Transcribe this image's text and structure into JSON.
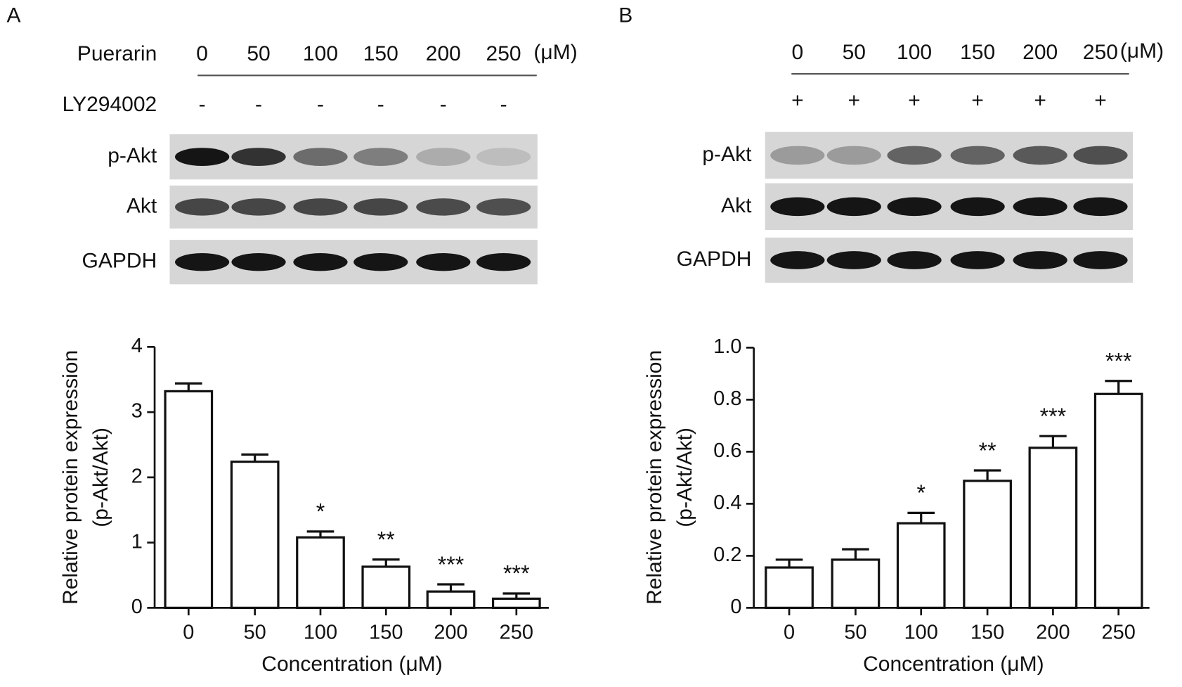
{
  "chart_data": [
    {
      "type": "bar",
      "panel_label": "A",
      "treatment_rows": [
        {
          "label": "Puerarin",
          "values": [
            "0",
            "50",
            "100",
            "150",
            "200",
            "250"
          ],
          "unit": "(μM)"
        },
        {
          "label": "LY294002",
          "values": [
            "-",
            "-",
            "-",
            "-",
            "-",
            "-"
          ]
        }
      ],
      "blot_labels": [
        "p-Akt",
        "Akt",
        "GAPDH"
      ],
      "y_label": [
        "Relative protein expression",
        "(p-Akt/Akt)"
      ],
      "x_label": "Concentration (μM)",
      "categories": [
        "0",
        "50",
        "100",
        "150",
        "200",
        "250"
      ],
      "values": [
        3.32,
        2.24,
        1.08,
        0.63,
        0.25,
        0.14
      ],
      "errors": [
        0.12,
        0.11,
        0.09,
        0.11,
        0.11,
        0.08
      ],
      "significance": [
        null,
        null,
        "*",
        "**",
        "***",
        "***"
      ],
      "color": "#ffffff",
      "ylim": [
        0,
        4
      ],
      "yticks": [
        0,
        1,
        2,
        3,
        4
      ],
      "grid": false
    },
    {
      "type": "bar",
      "panel_label": "B",
      "treatment_rows": [
        {
          "values": [
            "0",
            "50",
            "100",
            "150",
            "200",
            "250"
          ],
          "unit": "(μM)"
        },
        {
          "values": [
            "+",
            "+",
            "+",
            "+",
            "+",
            "+"
          ]
        }
      ],
      "blot_labels": [
        "p-Akt",
        "Akt",
        "GAPDH"
      ],
      "y_label": [
        "Relative protein expression",
        "(p-Akt/Akt)"
      ],
      "x_label": "Concentration (μM)",
      "categories": [
        "0",
        "50",
        "100",
        "150",
        "200",
        "250"
      ],
      "values": [
        0.155,
        0.185,
        0.325,
        0.488,
        0.615,
        0.822
      ],
      "errors": [
        0.03,
        0.04,
        0.04,
        0.04,
        0.045,
        0.05
      ],
      "significance": [
        null,
        null,
        "*",
        "**",
        "***",
        "***"
      ],
      "color": "#ffffff",
      "ylim": [
        0,
        1
      ],
      "yticks": [
        0,
        0.2,
        0.4,
        0.6,
        0.8,
        {
          "value": 1,
          "label": "1.0"
        }
      ],
      "grid": false
    }
  ]
}
